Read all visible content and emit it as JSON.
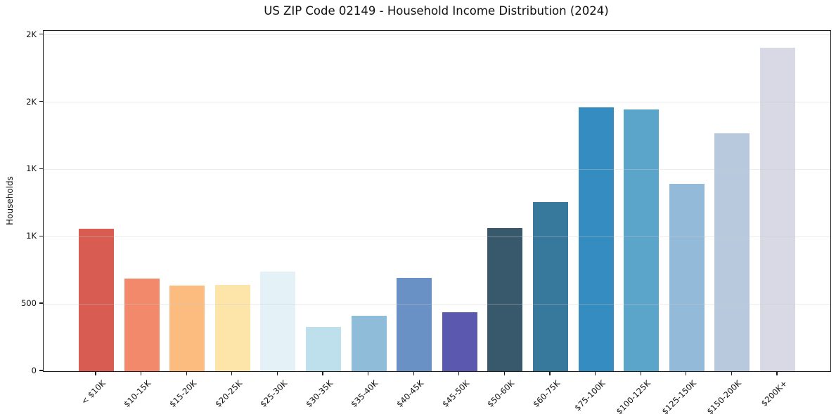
{
  "chart_data": {
    "type": "bar",
    "title": "US ZIP Code 02149 - Household Income Distribution (2024)",
    "xlabel": "",
    "ylabel": "Households",
    "categories": [
      "< $10K",
      "$10-15K",
      "$15-20K",
      "$20-25K",
      "$25-30K",
      "$30-35K",
      "$35-40K",
      "$40-45K",
      "$45-50K",
      "$50-60K",
      "$60-75K",
      "$75-100K",
      "$100-125K",
      "$125-150K",
      "$150-200K",
      "$200K+"
    ],
    "values": [
      1060,
      690,
      635,
      640,
      740,
      330,
      410,
      695,
      440,
      1065,
      1255,
      1960,
      1945,
      1395,
      1770,
      2405
    ],
    "bar_colors": [
      "#d85c52",
      "#f2896a",
      "#fcbc80",
      "#fde4a8",
      "#e4f1f7",
      "#bee0ec",
      "#8fbcd8",
      "#6a91c5",
      "#5a58af",
      "#37596b",
      "#37799c",
      "#348cc0",
      "#5ba5cb",
      "#93bad9",
      "#b8c9de",
      "#d8d9e5"
    ],
    "ylim": [
      0,
      2530
    ],
    "y_ticks": [
      {
        "value": 0,
        "label": "0"
      },
      {
        "value": 500,
        "label": "500"
      },
      {
        "value": 1000,
        "label": "1K"
      },
      {
        "value": 1500,
        "label": "1K"
      },
      {
        "value": 2000,
        "label": "2K"
      },
      {
        "value": 2500,
        "label": "2K"
      }
    ],
    "grid": "horizontal",
    "legend": "none",
    "background_color": "#ffffff",
    "axis_color": "#1c1c1c",
    "gridline_color": "#cbcbcb"
  }
}
